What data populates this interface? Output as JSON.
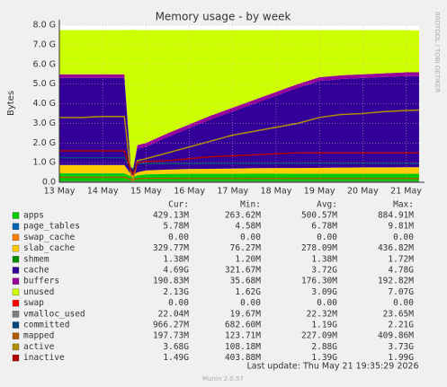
{
  "chart_data": {
    "type": "area",
    "title": "Memory usage - by week",
    "y_label": "Bytes",
    "side_text": "RRDTOOL / TOBI OETIKER",
    "footer": "Last update: Thu May 21 19:35:29 2026",
    "version": "Munin 2.0.57",
    "legend_headers": [
      "Cur:",
      "Min:",
      "Avg:",
      "Max:"
    ],
    "grid": true,
    "x": [
      13,
      13.5,
      14,
      14.5,
      14.65,
      14.7,
      14.8,
      15,
      15.5,
      16,
      16.5,
      17,
      17.5,
      18,
      18.5,
      19,
      19.5,
      20,
      20.5,
      21,
      21.3
    ],
    "xlim": [
      13,
      21.3
    ],
    "xticks": [
      {
        "value": 13,
        "label": "13 May"
      },
      {
        "value": 14,
        "label": "14 May"
      },
      {
        "value": 15,
        "label": "15 May"
      },
      {
        "value": 16,
        "label": "16 May"
      },
      {
        "value": 17,
        "label": "17 May"
      },
      {
        "value": 18,
        "label": "18 May"
      },
      {
        "value": 19,
        "label": "19 May"
      },
      {
        "value": 20,
        "label": "20 May"
      },
      {
        "value": 21,
        "label": "21 May"
      }
    ],
    "ylim": [
      0,
      8
    ],
    "yticks": [
      {
        "value": 0,
        "label": "0.0"
      },
      {
        "value": 1,
        "label": "1.0 G"
      },
      {
        "value": 2,
        "label": "2.0 G"
      },
      {
        "value": 3,
        "label": "3.0 G"
      },
      {
        "value": 4,
        "label": "4.0 G"
      },
      {
        "value": 5,
        "label": "5.0 G"
      },
      {
        "value": 6,
        "label": "6.0 G"
      },
      {
        "value": 7,
        "label": "7.0 G"
      },
      {
        "value": 8,
        "label": "8.0 G"
      }
    ],
    "series": [
      {
        "name": "apps",
        "color": "#00cc00",
        "style": "area",
        "cur": "429.13M",
        "min": "263.62M",
        "avg": "500.57M",
        "max": "884.91M",
        "values": [
          0.45,
          0.45,
          0.45,
          0.45,
          0.3,
          0.26,
          0.35,
          0.4,
          0.42,
          0.43,
          0.43,
          0.43,
          0.44,
          0.44,
          0.43,
          0.43,
          0.43,
          0.43,
          0.43,
          0.43,
          0.43
        ]
      },
      {
        "name": "page_tables",
        "color": "#0066b3",
        "style": "area",
        "cur": "5.78M",
        "min": "4.58M",
        "avg": "6.78M",
        "max": "9.81M",
        "values": [
          0.006,
          0.006,
          0.006,
          0.006,
          0.006,
          0.006,
          0.006,
          0.006,
          0.006,
          0.006,
          0.006,
          0.006,
          0.006,
          0.006,
          0.006,
          0.006,
          0.006,
          0.006,
          0.006,
          0.006,
          0.006
        ]
      },
      {
        "name": "swap_cache",
        "color": "#ff8000",
        "style": "area",
        "cur": "0.00",
        "min": "0.00",
        "avg": "0.00",
        "max": "0.00",
        "values": [
          0,
          0,
          0,
          0,
          0,
          0,
          0,
          0,
          0,
          0,
          0,
          0,
          0,
          0,
          0,
          0,
          0,
          0,
          0,
          0,
          0
        ]
      },
      {
        "name": "slab_cache",
        "color": "#ffcc00",
        "style": "area",
        "cur": "329.77M",
        "min": "76.27M",
        "avg": "278.09M",
        "max": "436.82M",
        "values": [
          0.42,
          0.42,
          0.42,
          0.42,
          0.1,
          0.08,
          0.15,
          0.2,
          0.22,
          0.24,
          0.25,
          0.26,
          0.27,
          0.28,
          0.29,
          0.3,
          0.31,
          0.32,
          0.32,
          0.33,
          0.33
        ]
      },
      {
        "name": "shmem",
        "color": "#008f00",
        "style": "area",
        "cur": "1.38M",
        "min": "1.20M",
        "avg": "1.38M",
        "max": "1.72M",
        "values": [
          0.0013,
          0.0013,
          0.0013,
          0.0013,
          0.0013,
          0.0013,
          0.0013,
          0.0013,
          0.0013,
          0.0013,
          0.0013,
          0.0013,
          0.0013,
          0.0013,
          0.0013,
          0.0013,
          0.0013,
          0.0013,
          0.0013,
          0.0013,
          0.0013
        ]
      },
      {
        "name": "cache",
        "color": "#330099",
        "style": "area",
        "cur": "4.69G",
        "min": "321.67M",
        "avg": "3.72G",
        "max": "4.78G",
        "values": [
          4.43,
          4.43,
          4.43,
          4.43,
          0.36,
          0.32,
          1.2,
          1.2,
          1.66,
          2.08,
          2.52,
          2.91,
          3.29,
          3.68,
          4.08,
          4.42,
          4.51,
          4.55,
          4.6,
          4.64,
          4.64
        ]
      },
      {
        "name": "buffers",
        "color": "#990099",
        "style": "area",
        "cur": "190.83M",
        "min": "35.68M",
        "avg": "176.30M",
        "max": "192.82M",
        "values": [
          0.19,
          0.19,
          0.19,
          0.19,
          0.035,
          0.035,
          0.19,
          0.19,
          0.19,
          0.19,
          0.19,
          0.19,
          0.19,
          0.19,
          0.19,
          0.19,
          0.19,
          0.19,
          0.19,
          0.19,
          0.19
        ]
      },
      {
        "name": "unused",
        "color": "#ccff00",
        "style": "area",
        "cur": "2.13G",
        "min": "1.62G",
        "avg": "3.09G",
        "max": "7.07G",
        "values": [
          2.25,
          2.25,
          2.25,
          2.25,
          6.95,
          7.07,
          5.85,
          5.75,
          5.25,
          4.8,
          4.35,
          3.95,
          3.55,
          3.15,
          2.75,
          2.4,
          2.3,
          2.25,
          2.2,
          2.15,
          2.13
        ]
      },
      {
        "name": "swap",
        "color": "#ff0000",
        "style": "area",
        "cur": "0.00",
        "min": "0.00",
        "avg": "0.00",
        "max": "0.00",
        "values": [
          0,
          0,
          0,
          0,
          0,
          0,
          0,
          0,
          0,
          0,
          0,
          0,
          0,
          0,
          0,
          0,
          0,
          0,
          0,
          0,
          0
        ]
      },
      {
        "name": "vmalloc_used",
        "color": "#808080",
        "style": "line",
        "cur": "22.04M",
        "min": "19.67M",
        "avg": "22.32M",
        "max": "23.65M",
        "values": [
          0.022,
          0.022,
          0.022,
          0.022,
          0.022,
          0.022,
          0.022,
          0.022,
          0.022,
          0.022,
          0.022,
          0.022,
          0.022,
          0.022,
          0.022,
          0.022,
          0.022,
          0.022,
          0.022,
          0.022,
          0.022
        ]
      },
      {
        "name": "committed",
        "color": "#00487d",
        "style": "line",
        "cur": "966.27M",
        "min": "682.60M",
        "avg": "1.19G",
        "max": "2.21G",
        "values": [
          1.25,
          1.25,
          1.25,
          1.25,
          0.7,
          0.67,
          0.95,
          0.95,
          0.95,
          0.95,
          0.96,
          0.96,
          0.96,
          0.96,
          0.97,
          0.97,
          0.97,
          0.97,
          0.96,
          0.96,
          0.94
        ]
      },
      {
        "name": "mapped",
        "color": "#b35a00",
        "style": "line",
        "cur": "197.73M",
        "min": "123.71M",
        "avg": "227.09M",
        "max": "409.86M",
        "values": [
          0.25,
          0.25,
          0.25,
          0.25,
          0.13,
          0.12,
          0.19,
          0.2,
          0.2,
          0.2,
          0.2,
          0.2,
          0.2,
          0.2,
          0.2,
          0.2,
          0.2,
          0.2,
          0.2,
          0.2,
          0.19
        ]
      },
      {
        "name": "active",
        "color": "#b38f00",
        "style": "line",
        "cur": "3.68G",
        "min": "108.18M",
        "avg": "2.88G",
        "max": "3.73G",
        "values": [
          3.3,
          3.3,
          3.35,
          3.35,
          0.4,
          0.11,
          1.1,
          1.2,
          1.5,
          1.8,
          2.1,
          2.4,
          2.6,
          2.8,
          3.0,
          3.3,
          3.45,
          3.5,
          3.6,
          3.65,
          3.68
        ]
      },
      {
        "name": "inactive",
        "color": "#b30000",
        "style": "line",
        "cur": "1.49G",
        "min": "403.88M",
        "avg": "1.39G",
        "max": "1.99G",
        "values": [
          1.6,
          1.6,
          1.6,
          1.6,
          0.6,
          0.4,
          1.0,
          1.05,
          1.1,
          1.2,
          1.3,
          1.35,
          1.4,
          1.45,
          1.5,
          1.5,
          1.5,
          1.5,
          1.5,
          1.5,
          1.49
        ]
      }
    ]
  }
}
